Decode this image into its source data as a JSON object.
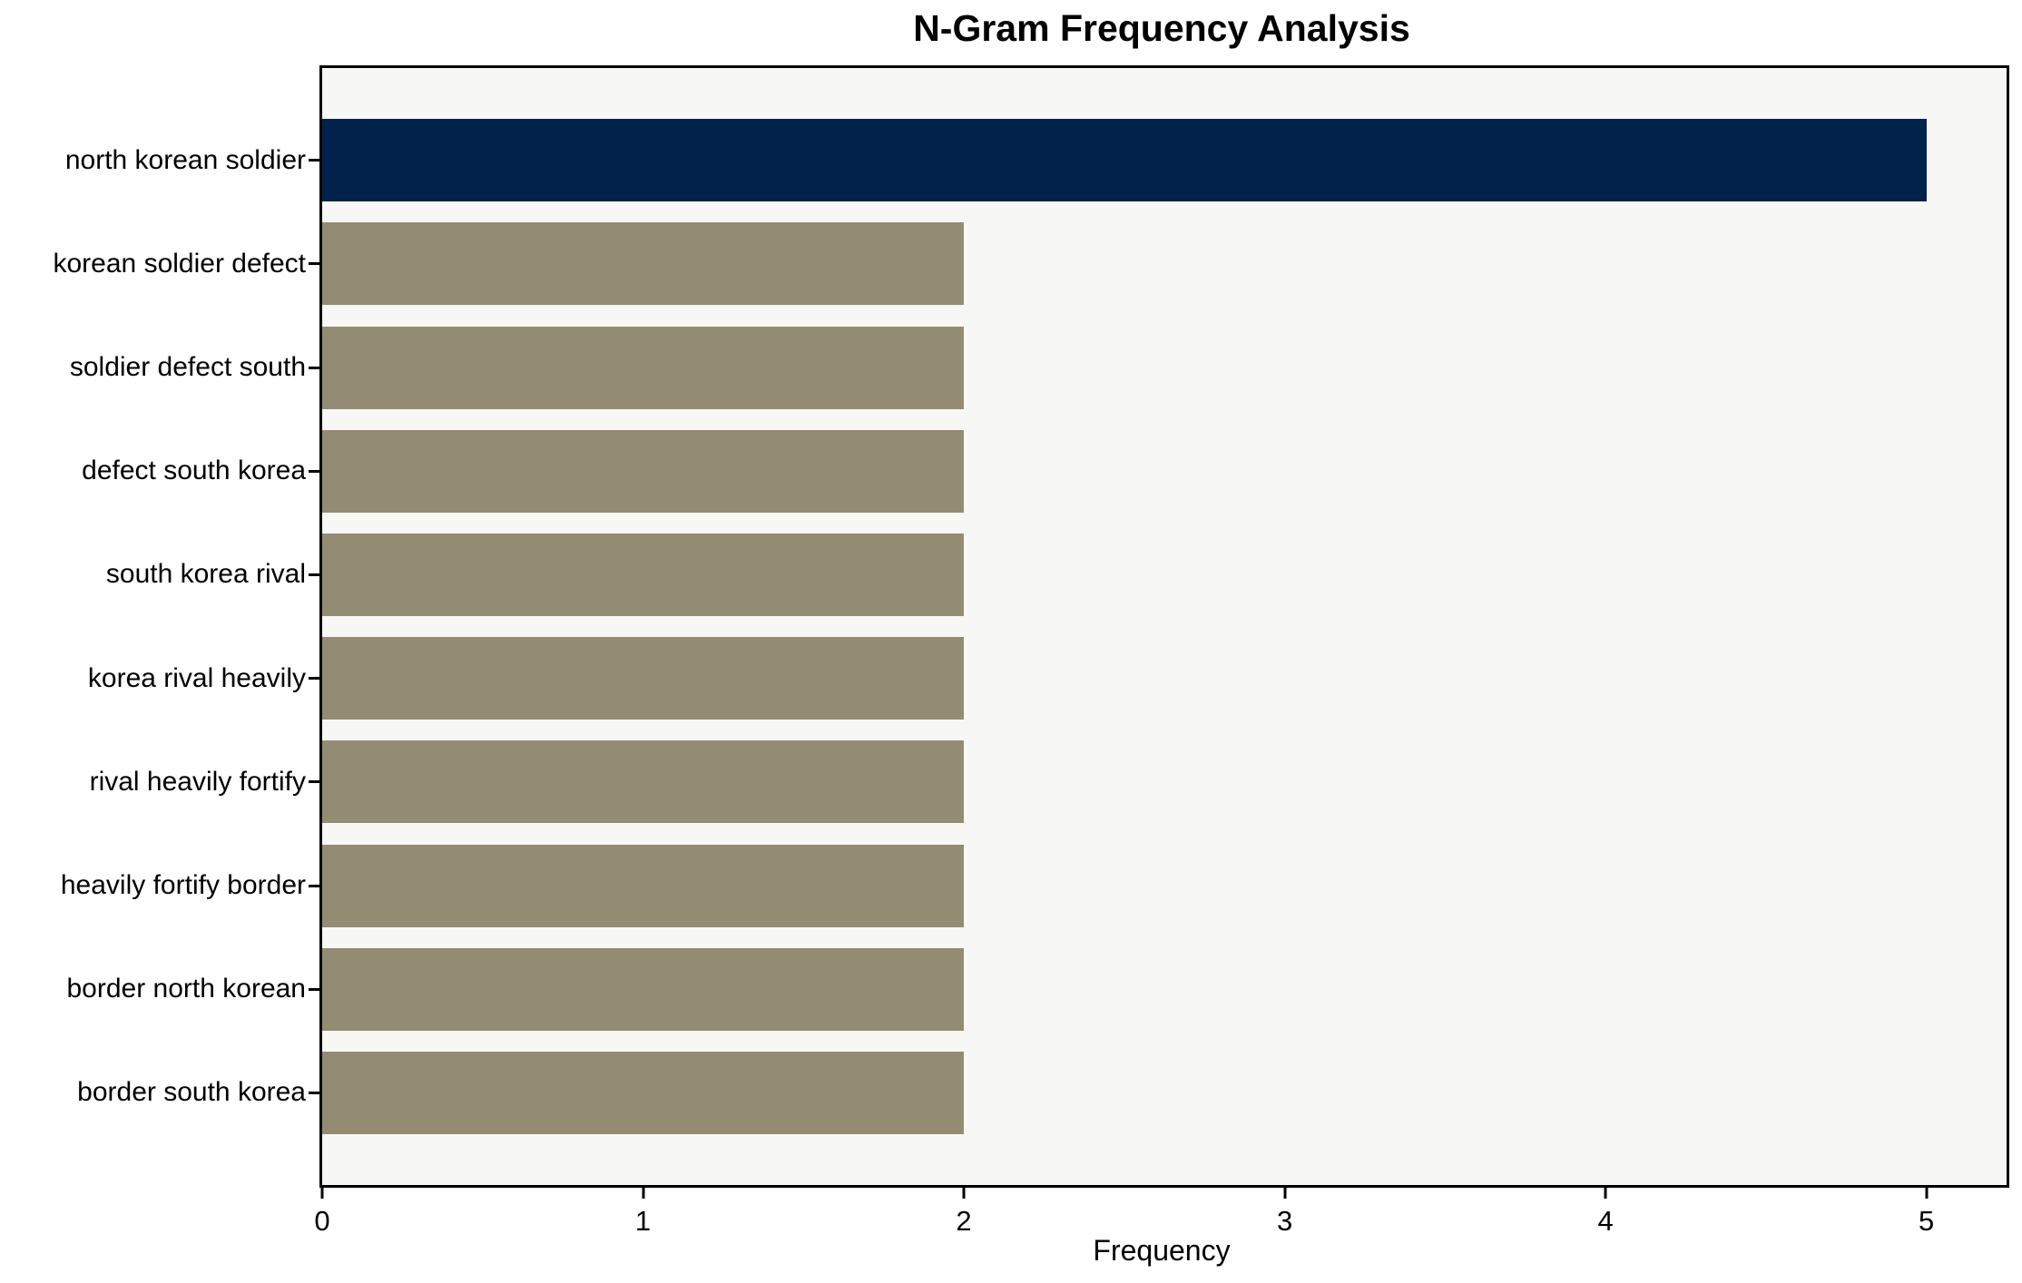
{
  "chart_data": {
    "type": "bar",
    "orientation": "horizontal",
    "title": "N-Gram Frequency Analysis",
    "xlabel": "Frequency",
    "ylabel": "",
    "categories": [
      "north korean soldier",
      "korean soldier defect",
      "soldier defect south",
      "defect south korea",
      "south korea rival",
      "korea rival heavily",
      "rival heavily fortify",
      "heavily fortify border",
      "border north korean",
      "border south korea"
    ],
    "values": [
      5,
      2,
      2,
      2,
      2,
      2,
      2,
      2,
      2,
      2
    ],
    "bar_colors": [
      "#01224a",
      "#948c72",
      "#948c72",
      "#948c72",
      "#948c72",
      "#948c72",
      "#948c72",
      "#948c72",
      "#948c72",
      "#948c72"
    ],
    "xticks": [
      0,
      1,
      2,
      3,
      4,
      5
    ],
    "xlim": [
      0,
      5.25
    ],
    "grid": false,
    "legend": null,
    "plot_background": "#f7f7f6",
    "figure_background": "#ffffff",
    "spine_color": "#000000",
    "highlight_color": "#01224a",
    "default_bar_color": "#948c72"
  }
}
